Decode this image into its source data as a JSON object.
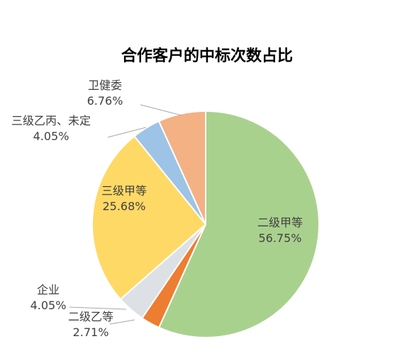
{
  "chart_data": {
    "type": "pie",
    "title": "合作客户的中标次数占比",
    "slices": [
      {
        "label": "二级甲等",
        "value": 56.75,
        "display": "56.75%",
        "color": "#a9d18e"
      },
      {
        "label": "二级乙等",
        "value": 2.71,
        "display": "2.71%",
        "color": "#ed7d31"
      },
      {
        "label": "企业",
        "value": 4.05,
        "display": "4.05%",
        "color": "#dde1e6"
      },
      {
        "label": "三级甲等",
        "value": 25.68,
        "display": "25.68%",
        "color": "#ffd966"
      },
      {
        "label": "三级乙丙、未定",
        "value": 4.05,
        "display": "4.05%",
        "color": "#9dc3e6"
      },
      {
        "label": "卫健委",
        "value": 6.76,
        "display": "6.76%",
        "color": "#f4b183"
      }
    ]
  }
}
